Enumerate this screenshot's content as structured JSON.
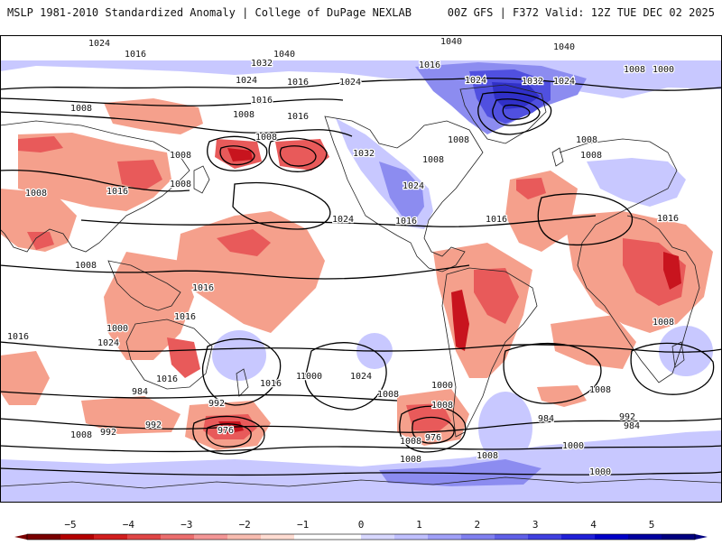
{
  "header": {
    "title_left": "MSLP 1981-2010 Standardized Anomaly | College of DuPage NEXLAB",
    "title_right": "00Z GFS | F372 Valid: 12Z TUE DEC 02 2025"
  },
  "colors": {
    "ocean": "#ffffff",
    "negative_strong": "#c8141e",
    "negative_mid": "#e85a5a",
    "negative_light": "#f5a08c",
    "positive_light": "#c8c8ff",
    "positive_mid": "#8c8cf0",
    "positive_strong": "#3c3ce6",
    "isobar": "#000000",
    "coast": "#000000"
  },
  "colorbar": {
    "ticks": [
      "−5",
      "−4",
      "−3",
      "−2",
      "−1",
      "0",
      "1",
      "2",
      "3",
      "4",
      "5"
    ],
    "segments": [
      "#7a0000",
      "#b40000",
      "#d21e1e",
      "#e04646",
      "#ec6e6e",
      "#f49696",
      "#f8bcb0",
      "#ffdcd2",
      "#ffffff",
      "#ffffff",
      "#d8d8ff",
      "#c0c0ff",
      "#a0a0f8",
      "#8080f0",
      "#6060e8",
      "#4040e0",
      "#2020d8",
      "#0000c8",
      "#0000a0",
      "#000080"
    ]
  },
  "isobar_labels": [
    "1032",
    "1024",
    "1016",
    "1032",
    "1040",
    "1024",
    "1008",
    "1016",
    "1024",
    "1040",
    "1016",
    "1024",
    "1040",
    "1032",
    "1024",
    "1008",
    "1008",
    "1000",
    "1016",
    "1008",
    "1016",
    "1008",
    "1008",
    "1032",
    "1008",
    "1024",
    "1016",
    "1024",
    "1016",
    "1008",
    "1008",
    "1016",
    "1008",
    "1016",
    "1008",
    "1008",
    "1016",
    "1016",
    "1000",
    "1024",
    "1016",
    "1000",
    "1008",
    "984",
    "992",
    "976",
    "992",
    "976",
    "1000",
    "1008",
    "1008",
    "992",
    "984",
    "992",
    "984",
    "1000",
    "1008",
    "1000",
    "1008",
    "1008",
    "1016",
    "1016",
    "1024",
    "1000",
    "1008",
    "1008"
  ],
  "anomaly_fields": [
    {
      "name": "n-pacific-low-west",
      "sign": "negative"
    },
    {
      "name": "n-pacific-low-east",
      "sign": "negative"
    },
    {
      "name": "greenland-high",
      "sign": "positive"
    },
    {
      "name": "north-america-high",
      "sign": "positive"
    },
    {
      "name": "south-america-low",
      "sign": "negative"
    },
    {
      "name": "africa-low",
      "sign": "negative"
    },
    {
      "name": "south-pacific-low",
      "sign": "negative"
    }
  ]
}
